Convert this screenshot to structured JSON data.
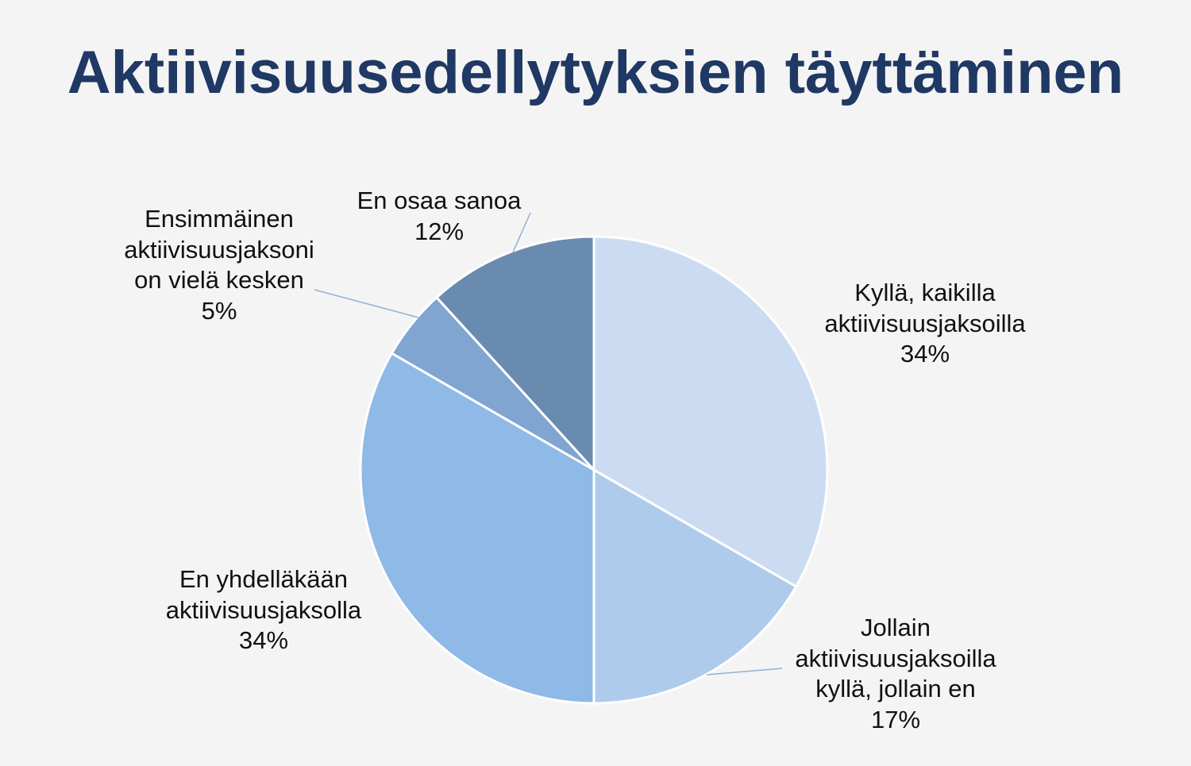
{
  "chart_data": {
    "type": "pie",
    "title": "Aktiivisuusedellytyksien täyttäminen",
    "slices": [
      {
        "label_lines": [
          "Kyllä, kaikilla",
          "aktiivisuusjaksoilla"
        ],
        "value": 34,
        "value_label": "34%",
        "color": "#cbdcf2"
      },
      {
        "label_lines": [
          "Jollain",
          "aktiivisuusjaksoilla",
          "kyllä, jollain en"
        ],
        "value": 17,
        "value_label": "17%",
        "color": "#afcbec"
      },
      {
        "label_lines": [
          "En yhdelläkään",
          "aktiivisuusjaksolla"
        ],
        "value": 34,
        "value_label": "34%",
        "color": "#8fb9e6"
      },
      {
        "label_lines": [
          "Ensimmäinen",
          "aktiivisuusjaksoni",
          "on vielä kesken"
        ],
        "value": 5,
        "value_label": "5%",
        "color": "#7fa5d0"
      },
      {
        "label_lines": [
          "En osaa sanoa"
        ],
        "value": 12,
        "value_label": "12%",
        "color": "#6a8bb0"
      }
    ],
    "start": "12 o'clock",
    "direction": "clockwise",
    "slice_border_color": "#ffffff",
    "leader_line_color": "#8eb1d8"
  }
}
